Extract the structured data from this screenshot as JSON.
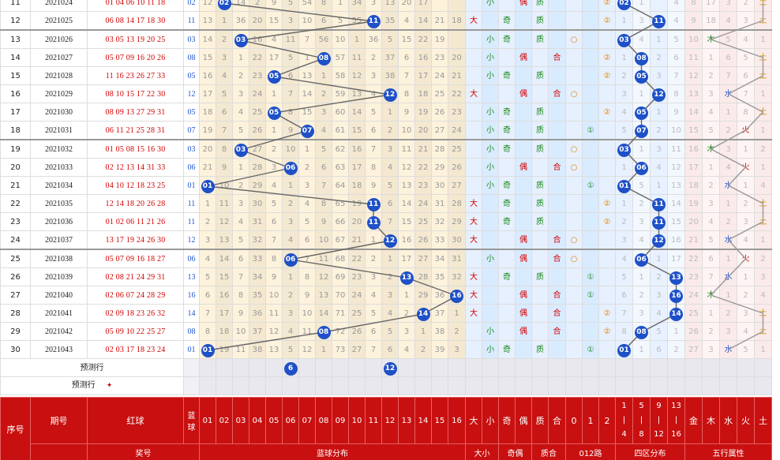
{
  "rows": [
    {
      "idx": "11",
      "issue": "2021024",
      "red": "01 04 06 10 11 18",
      "blue": "02",
      "miss": [
        "12",
        "",
        "14",
        "2",
        "9",
        "5",
        "54",
        "8",
        "1",
        "34",
        "3",
        "13",
        "20",
        "17",
        "",
        ""
      ],
      "hit": 2,
      "sz": "",
      "ds": "小",
      "jo": "",
      "zh": "偶",
      "zc": "质",
      "he": "",
      "o": "",
      "r1": "",
      "r2": "②",
      "q": [
        "02",
        "1",
        "",
        "4"
      ],
      "qhit": 0,
      "wx": [
        "8",
        "17",
        "3",
        "2",
        "土"
      ],
      "wxhit": 4
    },
    {
      "idx": "12",
      "issue": "2021025",
      "red": "06 08 14 17 18 30",
      "blue": "11",
      "miss": [
        "13",
        "1",
        "36",
        "20",
        "15",
        "3",
        "10",
        "6",
        "5",
        "55",
        "11",
        "35",
        "4",
        "14",
        "21",
        "18"
      ],
      "hit": 11,
      "sz": "大",
      "ds": "",
      "jo": "奇",
      "zh": "",
      "zc": "质",
      "he": "",
      "o": "",
      "r1": "",
      "r2": "②",
      "q": [
        "1",
        "3",
        "11",
        "4"
      ],
      "qhit": 2,
      "wx": [
        "9",
        "18",
        "4",
        "3",
        "土"
      ],
      "wxhit": 4
    },
    {
      "idx": "13",
      "issue": "2021026",
      "red": "03 05 13 19 20 25",
      "blue": "03",
      "miss": [
        "14",
        "2",
        "3",
        "16",
        "4",
        "11",
        "7",
        "56",
        "10",
        "1",
        "36",
        "5",
        "15",
        "22",
        "19",
        ""
      ],
      "hit": 3,
      "sz": "",
      "ds": "小",
      "jo": "奇",
      "zh": "",
      "zc": "质",
      "he": "",
      "o": "○",
      "r1": "",
      "r2": "",
      "q": [
        "03",
        "4",
        "1",
        "5"
      ],
      "qhit": 0,
      "wx": [
        "10",
        "木",
        "5",
        "4",
        "1"
      ],
      "wxhit": 1
    },
    {
      "idx": "14",
      "issue": "2021027",
      "red": "05 07 09 16 20 26",
      "blue": "08",
      "miss": [
        "15",
        "3",
        "1",
        "22",
        "17",
        "5",
        "1",
        "8",
        "57",
        "11",
        "2",
        "37",
        "6",
        "16",
        "23",
        "20"
      ],
      "hit": 8,
      "sz": "",
      "ds": "小",
      "jo": "",
      "zh": "偶",
      "zc": "",
      "he": "合",
      "o": "",
      "r1": "",
      "r2": "②",
      "q": [
        "1",
        "08",
        "2",
        "6"
      ],
      "qhit": 1,
      "wx": [
        "11",
        "1",
        "6",
        "5",
        "土"
      ],
      "wxhit": 4
    },
    {
      "idx": "15",
      "issue": "2021028",
      "red": "11 16 23 26 27 33",
      "blue": "05",
      "miss": [
        "16",
        "4",
        "2",
        "23",
        "5",
        "6",
        "13",
        "1",
        "58",
        "12",
        "3",
        "38",
        "7",
        "17",
        "24",
        "21"
      ],
      "hit": 5,
      "sz": "",
      "ds": "小",
      "jo": "奇",
      "zh": "",
      "zc": "质",
      "he": "",
      "o": "",
      "r1": "",
      "r2": "②",
      "q": [
        "2",
        "05",
        "3",
        "7"
      ],
      "qhit": 1,
      "wx": [
        "12",
        "2",
        "7",
        "6",
        "土"
      ],
      "wxhit": 4
    },
    {
      "idx": "16",
      "issue": "2021029",
      "red": "08 10 15 17 22 30",
      "blue": "12",
      "miss": [
        "17",
        "5",
        "3",
        "24",
        "1",
        "7",
        "14",
        "2",
        "59",
        "13",
        "4",
        "12",
        "8",
        "18",
        "25",
        "22"
      ],
      "hit": 12,
      "sz": "大",
      "ds": "",
      "jo": "",
      "zh": "偶",
      "zc": "",
      "he": "合",
      "o": "○",
      "r1": "",
      "r2": "",
      "q": [
        "3",
        "1",
        "12",
        "8"
      ],
      "qhit": 2,
      "wx": [
        "13",
        "3",
        "水",
        "7",
        "1"
      ],
      "wxhit": 2
    },
    {
      "idx": "17",
      "issue": "2021030",
      "red": "08 09 13 27 29 31",
      "blue": "05",
      "miss": [
        "18",
        "6",
        "4",
        "25",
        "5",
        "8",
        "15",
        "3",
        "60",
        "14",
        "5",
        "1",
        "9",
        "19",
        "26",
        "23"
      ],
      "hit": 5,
      "sz": "",
      "ds": "小",
      "jo": "奇",
      "zh": "",
      "zc": "质",
      "he": "",
      "o": "",
      "r1": "",
      "r2": "②",
      "q": [
        "4",
        "05",
        "1",
        "9"
      ],
      "qhit": 1,
      "wx": [
        "14",
        "4",
        "1",
        "8",
        "土"
      ],
      "wxhit": 4
    },
    {
      "idx": "18",
      "issue": "2021031",
      "red": "06 11 21 25 28 31",
      "blue": "07",
      "miss": [
        "19",
        "7",
        "5",
        "26",
        "1",
        "9",
        "7",
        "4",
        "61",
        "15",
        "6",
        "2",
        "10",
        "20",
        "27",
        "24"
      ],
      "hit": 7,
      "sz": "",
      "ds": "小",
      "jo": "奇",
      "zh": "",
      "zc": "质",
      "he": "",
      "o": "",
      "r1": "①",
      "r2": "",
      "q": [
        "5",
        "07",
        "2",
        "10"
      ],
      "qhit": 1,
      "wx": [
        "15",
        "5",
        "2",
        "火",
        "1"
      ],
      "wxhit": 3
    },
    {
      "idx": "19",
      "issue": "2021032",
      "red": "01 05 08 15 16 30",
      "blue": "03",
      "miss": [
        "20",
        "8",
        "3",
        "27",
        "2",
        "10",
        "1",
        "5",
        "62",
        "16",
        "7",
        "3",
        "11",
        "21",
        "28",
        "25"
      ],
      "hit": 3,
      "sz": "",
      "ds": "小",
      "jo": "奇",
      "zh": "",
      "zc": "质",
      "he": "",
      "o": "○",
      "r1": "",
      "r2": "",
      "q": [
        "03",
        "1",
        "3",
        "11"
      ],
      "qhit": 0,
      "wx": [
        "16",
        "木",
        "3",
        "1",
        "2"
      ],
      "wxhit": 1
    },
    {
      "idx": "20",
      "issue": "2021033",
      "red": "02 12 13 14 31 33",
      "blue": "06",
      "miss": [
        "21",
        "9",
        "1",
        "28",
        "3",
        "6",
        "2",
        "6",
        "63",
        "17",
        "8",
        "4",
        "12",
        "22",
        "29",
        "26"
      ],
      "hit": 6,
      "sz": "",
      "ds": "小",
      "jo": "",
      "zh": "偶",
      "zc": "",
      "he": "合",
      "o": "○",
      "r1": "",
      "r2": "",
      "q": [
        "1",
        "06",
        "4",
        "12"
      ],
      "qhit": 1,
      "wx": [
        "17",
        "1",
        "4",
        "火",
        "1"
      ],
      "wxhit": 3
    },
    {
      "idx": "21",
      "issue": "2021034",
      "red": "04 10 12 18 23 25",
      "blue": "01",
      "miss": [
        "1",
        "10",
        "2",
        "29",
        "4",
        "1",
        "3",
        "7",
        "64",
        "18",
        "9",
        "5",
        "13",
        "23",
        "30",
        "27"
      ],
      "hit": 1,
      "sz": "",
      "ds": "小",
      "jo": "奇",
      "zh": "",
      "zc": "质",
      "he": "",
      "o": "",
      "r1": "①",
      "r2": "",
      "q": [
        "01",
        "5",
        "1",
        "13"
      ],
      "qhit": 0,
      "wx": [
        "18",
        "2",
        "水",
        "1",
        "4"
      ],
      "wxhit": 2
    },
    {
      "idx": "22",
      "issue": "2021035",
      "red": "12 14 18 20 26 28",
      "blue": "11",
      "miss": [
        "1",
        "11",
        "3",
        "30",
        "5",
        "2",
        "4",
        "8",
        "65",
        "19",
        "11",
        "6",
        "14",
        "24",
        "31",
        "28"
      ],
      "hit": 11,
      "sz": "大",
      "ds": "",
      "jo": "奇",
      "zh": "",
      "zc": "质",
      "he": "",
      "o": "",
      "r1": "",
      "r2": "②",
      "q": [
        "1",
        "2",
        "11",
        "14"
      ],
      "qhit": 2,
      "wx": [
        "19",
        "3",
        "1",
        "2",
        "土"
      ],
      "wxhit": 4
    },
    {
      "idx": "23",
      "issue": "2021036",
      "red": "01 02 06 11 21 26",
      "blue": "11",
      "miss": [
        "2",
        "12",
        "4",
        "31",
        "6",
        "3",
        "5",
        "9",
        "66",
        "20",
        "11",
        "7",
        "15",
        "25",
        "32",
        "29"
      ],
      "hit": 11,
      "sz": "大",
      "ds": "",
      "jo": "奇",
      "zh": "",
      "zc": "质",
      "he": "",
      "o": "",
      "r1": "",
      "r2": "②",
      "q": [
        "2",
        "3",
        "11",
        "15"
      ],
      "qhit": 2,
      "wx": [
        "20",
        "4",
        "2",
        "3",
        "土"
      ],
      "wxhit": 4
    },
    {
      "idx": "24",
      "issue": "2021037",
      "red": "13 17 19 24 26 30",
      "blue": "12",
      "miss": [
        "3",
        "13",
        "5",
        "32",
        "7",
        "4",
        "6",
        "10",
        "67",
        "21",
        "1",
        "12",
        "16",
        "26",
        "33",
        "30"
      ],
      "hit": 12,
      "sz": "大",
      "ds": "",
      "jo": "",
      "zh": "偶",
      "zc": "",
      "he": "合",
      "o": "○",
      "r1": "",
      "r2": "",
      "q": [
        "3",
        "4",
        "12",
        "16"
      ],
      "qhit": 2,
      "wx": [
        "21",
        "5",
        "水",
        "4",
        "1"
      ],
      "wxhit": 2
    },
    {
      "idx": "25",
      "issue": "2021038",
      "red": "05 07 09 16 18 27",
      "blue": "06",
      "miss": [
        "4",
        "14",
        "6",
        "33",
        "8",
        "6",
        "7",
        "11",
        "68",
        "22",
        "2",
        "1",
        "17",
        "27",
        "34",
        "31"
      ],
      "hit": 6,
      "sz": "",
      "ds": "小",
      "jo": "",
      "zh": "偶",
      "zc": "",
      "he": "合",
      "o": "○",
      "r1": "",
      "r2": "",
      "q": [
        "4",
        "06",
        "1",
        "17"
      ],
      "qhit": 1,
      "wx": [
        "22",
        "6",
        "1",
        "火",
        "2"
      ],
      "wxhit": 3
    },
    {
      "idx": "26",
      "issue": "2021039",
      "red": "02 08 21 24 29 31",
      "blue": "13",
      "miss": [
        "5",
        "15",
        "7",
        "34",
        "9",
        "1",
        "8",
        "12",
        "69",
        "23",
        "3",
        "2",
        "13",
        "28",
        "35",
        "32"
      ],
      "hit": 13,
      "sz": "大",
      "ds": "",
      "jo": "奇",
      "zh": "",
      "zc": "质",
      "he": "",
      "o": "",
      "r1": "①",
      "r2": "",
      "q": [
        "5",
        "1",
        "2",
        "13"
      ],
      "qhit": 3,
      "wx": [
        "23",
        "7",
        "水",
        "1",
        "3"
      ],
      "wxhit": 2
    },
    {
      "idx": "27",
      "issue": "2021040",
      "red": "02 06 07 24 28 29",
      "blue": "16",
      "miss": [
        "6",
        "16",
        "8",
        "35",
        "10",
        "2",
        "9",
        "13",
        "70",
        "24",
        "4",
        "3",
        "1",
        "29",
        "36",
        "16"
      ],
      "hit": 16,
      "sz": "大",
      "ds": "",
      "jo": "",
      "zh": "偶",
      "zc": "",
      "he": "合",
      "o": "",
      "r1": "①",
      "r2": "",
      "q": [
        "6",
        "2",
        "3",
        "16"
      ],
      "qhit": 3,
      "wx": [
        "24",
        "木",
        "1",
        "2",
        "4"
      ],
      "wxhit": 1
    },
    {
      "idx": "28",
      "issue": "2021041",
      "red": "02 09 18 23 26 32",
      "blue": "14",
      "miss": [
        "7",
        "17",
        "9",
        "36",
        "11",
        "3",
        "10",
        "14",
        "71",
        "25",
        "5",
        "4",
        "2",
        "14",
        "37",
        "1"
      ],
      "hit": 14,
      "sz": "大",
      "ds": "",
      "jo": "",
      "zh": "偶",
      "zc": "",
      "he": "合",
      "o": "",
      "r1": "",
      "r2": "②",
      "q": [
        "7",
        "3",
        "4",
        "14"
      ],
      "qhit": 3,
      "wx": [
        "25",
        "1",
        "2",
        "3",
        "土"
      ],
      "wxhit": 4
    },
    {
      "idx": "29",
      "issue": "2021042",
      "red": "05 09 10 22 25 27",
      "blue": "08",
      "miss": [
        "8",
        "18",
        "10",
        "37",
        "12",
        "4",
        "11",
        "8",
        "72",
        "26",
        "6",
        "5",
        "3",
        "1",
        "38",
        "2"
      ],
      "hit": 8,
      "sz": "",
      "ds": "小",
      "jo": "",
      "zh": "偶",
      "zc": "",
      "he": "合",
      "o": "",
      "r1": "",
      "r2": "②",
      "q": [
        "8",
        "08",
        "5",
        "1"
      ],
      "qhit": 1,
      "wx": [
        "26",
        "2",
        "3",
        "4",
        "土"
      ],
      "wxhit": 4
    },
    {
      "idx": "30",
      "issue": "2021043",
      "red": "02 03 17 18 23 24",
      "blue": "01",
      "miss": [
        "1",
        "19",
        "11",
        "38",
        "13",
        "5",
        "12",
        "1",
        "73",
        "27",
        "7",
        "6",
        "4",
        "2",
        "39",
        "3"
      ],
      "hit": 1,
      "sz": "",
      "ds": "小",
      "jo": "奇",
      "zh": "",
      "zc": "质",
      "he": "",
      "o": "",
      "r1": "①",
      "r2": "",
      "q": [
        "01",
        "1",
        "6",
        "2"
      ],
      "qhit": 0,
      "wx": [
        "27",
        "3",
        "水",
        "5",
        "1"
      ],
      "wxhit": 2
    }
  ],
  "predict_rows": [
    {
      "label": "预测行",
      "balls": [
        "6",
        "12"
      ]
    },
    {
      "label": "预测行",
      "arrow": "✦",
      "balls": []
    }
  ],
  "header": {
    "idx": "序号",
    "issue": "期号",
    "red": "红球",
    "blue": "蓝球",
    "nums": [
      "01",
      "02",
      "03",
      "04",
      "05",
      "06",
      "07",
      "08",
      "09",
      "10",
      "11",
      "12",
      "13",
      "14",
      "15",
      "16"
    ],
    "attrs": [
      "大",
      "小",
      "奇",
      "偶",
      "质",
      "合",
      "0",
      "1",
      "2"
    ],
    "quad": [
      "1|4",
      "5|8",
      "9|12",
      "13|16"
    ],
    "wx": [
      "金",
      "木",
      "水",
      "火",
      "土"
    ],
    "groups": {
      "prize": "奖号",
      "dist": "蓝球分布",
      "size": "大小",
      "parity": "奇偶",
      "primality": "质合",
      "mod": "012路",
      "quad": "四区分布",
      "wx": "五行属性"
    }
  }
}
